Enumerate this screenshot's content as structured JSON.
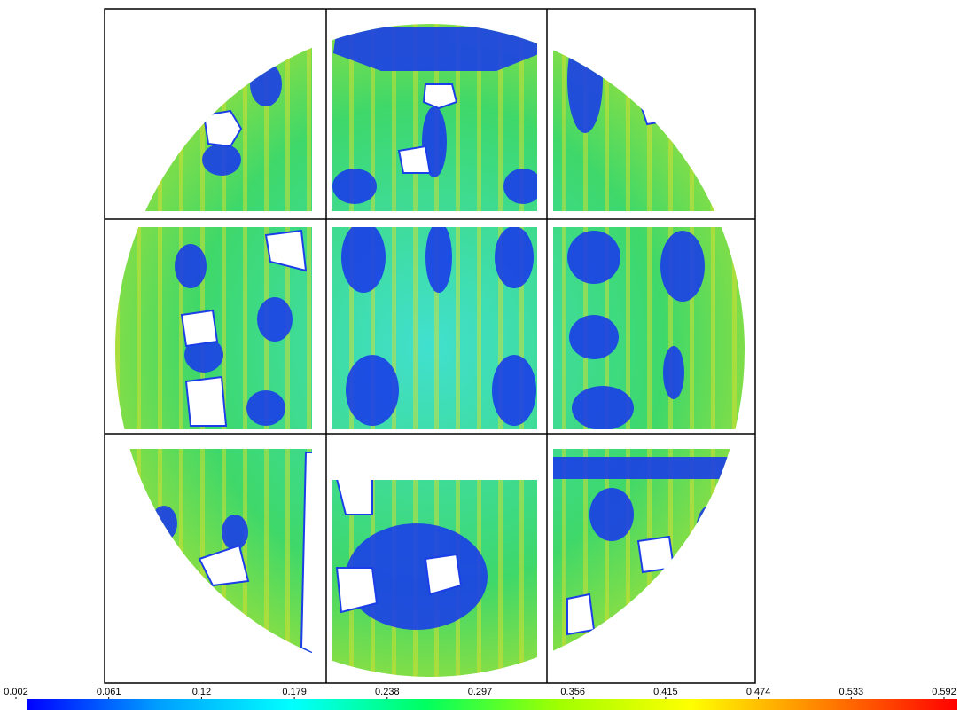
{
  "chart_data": {
    "type": "colorbar",
    "xlim": [
      0.002,
      0.592
    ],
    "xticks": [
      0.002,
      0.061,
      0.12,
      0.179,
      0.238,
      0.297,
      0.356,
      0.415,
      0.474,
      0.533,
      0.592
    ],
    "colors": [
      "#0000ff",
      "#00a0ff",
      "#00ffff",
      "#00ff60",
      "#a0ff00",
      "#ffff00",
      "#ff8000",
      "#ff0000"
    ]
  }
}
